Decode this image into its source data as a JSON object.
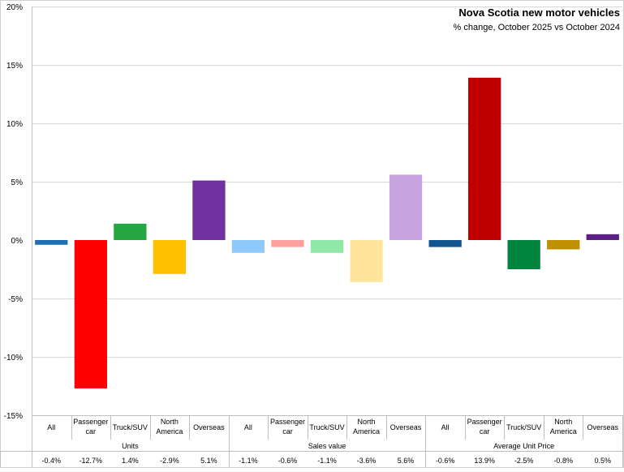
{
  "chart_data": {
    "type": "bar",
    "title": "Nova Scotia new motor vehicles",
    "subtitle": "% change, October 2025 vs October 2024",
    "xlabel": "",
    "ylabel": "",
    "ylim": [
      -15,
      20
    ],
    "yticks": [
      20,
      15,
      10,
      5,
      0,
      -5,
      -10,
      -15
    ],
    "ytick_labels": [
      "20%",
      "15%",
      "10%",
      "5%",
      "0%",
      "-5%",
      "-10%",
      "-15%"
    ],
    "grid": true,
    "legend": "none",
    "groups": [
      {
        "name": "Units",
        "categories": [
          "All",
          "Passenger car",
          "Truck/SUV",
          "North America",
          "Overseas"
        ],
        "values": [
          -0.4,
          -12.7,
          1.4,
          -2.9,
          5.1
        ],
        "labels": [
          "-0.4%",
          "-12.7%",
          "1.4%",
          "-2.9%",
          "5.1%"
        ],
        "colors": [
          "#1f6fb4",
          "#ff0000",
          "#26a641",
          "#ffc000",
          "#7030a0"
        ]
      },
      {
        "name": "Sales value",
        "categories": [
          "All",
          "Passenger car",
          "Truck/SUV",
          "North America",
          "Overseas"
        ],
        "values": [
          -1.1,
          -0.6,
          -1.1,
          -3.6,
          5.6
        ],
        "labels": [
          "-1.1%",
          "-0.6%",
          "-1.1%",
          "-3.6%",
          "5.6%"
        ],
        "colors": [
          "#8fc9f9",
          "#ffa0a0",
          "#8fe7a8",
          "#ffe49a",
          "#c8a3e0"
        ]
      },
      {
        "name": "Average Unit Price",
        "categories": [
          "All",
          "Passenger car",
          "Truck/SUV",
          "North America",
          "Overseas"
        ],
        "values": [
          -0.6,
          13.9,
          -2.5,
          -0.8,
          0.5
        ],
        "labels": [
          "-0.6%",
          "13.9%",
          "-2.5%",
          "-0.8%",
          "0.5%"
        ],
        "colors": [
          "#13568f",
          "#c00000",
          "#00853e",
          "#bf9000",
          "#5c1f85"
        ]
      }
    ]
  }
}
